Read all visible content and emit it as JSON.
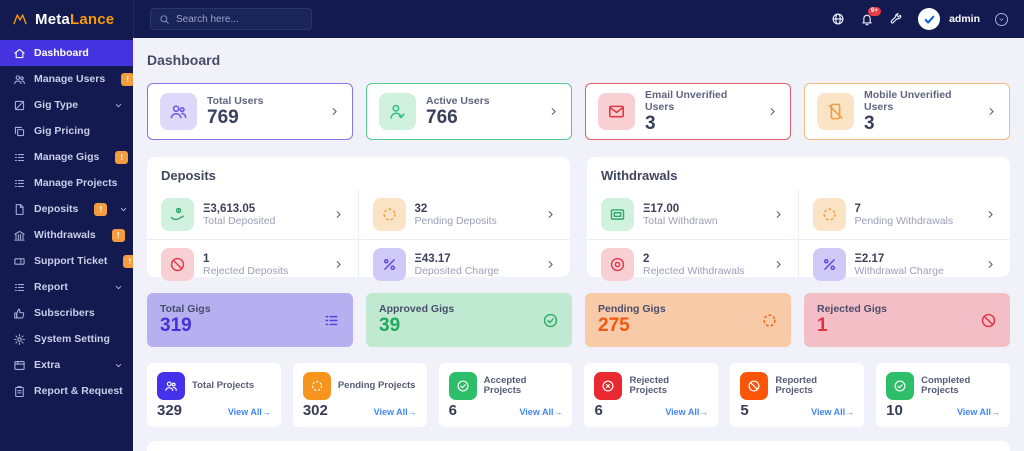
{
  "brand": {
    "name_primary": "Meta",
    "name_secondary": "Lance"
  },
  "header": {
    "search_placeholder": "Search here...",
    "notification_count": "9+",
    "username": "admin"
  },
  "page": {
    "title": "Dashboard"
  },
  "sidebar": {
    "items": [
      {
        "label": "Dashboard",
        "icon": "home",
        "active": true
      },
      {
        "label": "Manage Users",
        "icon": "users",
        "badge": "!",
        "caret": true
      },
      {
        "label": "Gig Type",
        "icon": "grid",
        "caret": true
      },
      {
        "label": "Gig Pricing",
        "icon": "copy"
      },
      {
        "label": "Manage Gigs",
        "icon": "list",
        "badge": "!",
        "caret": true
      },
      {
        "label": "Manage Projects",
        "icon": "list",
        "badge": "!",
        "caret": true
      },
      {
        "label": "Deposits",
        "icon": "file",
        "badge": "!",
        "caret": true
      },
      {
        "label": "Withdrawals",
        "icon": "bank",
        "badge": "!",
        "caret": true
      },
      {
        "label": "Support Ticket",
        "icon": "ticket",
        "badge": "!",
        "caret": true
      },
      {
        "label": "Report",
        "icon": "list",
        "caret": true
      },
      {
        "label": "Subscribers",
        "icon": "thumb"
      },
      {
        "label": "System Setting",
        "icon": "gear"
      },
      {
        "label": "Extra",
        "icon": "window",
        "caret": true
      },
      {
        "label": "Report & Request",
        "icon": "clipboard"
      }
    ]
  },
  "stat_cards": [
    {
      "label": "Total Users",
      "value": "769",
      "icon": "users",
      "theme": "purple"
    },
    {
      "label": "Active Users",
      "value": "766",
      "icon": "user-check",
      "theme": "green"
    },
    {
      "label": "Email Unverified Users",
      "value": "3",
      "icon": "envelope",
      "theme": "red"
    },
    {
      "label": "Mobile Unverified Users",
      "value": "3",
      "icon": "phone-slash",
      "theme": "orange"
    }
  ],
  "deposits": {
    "title": "Deposits",
    "items": [
      {
        "value": "Ξ3,613.05",
        "label": "Total Deposited",
        "icon": "hand-coin",
        "theme": "green"
      },
      {
        "value": "32",
        "label": "Pending Deposits",
        "icon": "spinner",
        "theme": "orange"
      },
      {
        "value": "1",
        "label": "Rejected Deposits",
        "icon": "ban",
        "theme": "red"
      },
      {
        "value": "Ξ43.17",
        "label": "Deposited Charge",
        "icon": "percent",
        "theme": "purple"
      }
    ]
  },
  "withdrawals": {
    "title": "Withdrawals",
    "items": [
      {
        "value": "Ξ17.00",
        "label": "Total Withdrawn",
        "icon": "card",
        "theme": "green"
      },
      {
        "value": "7",
        "label": "Pending Withdrawals",
        "icon": "spinner",
        "theme": "orange"
      },
      {
        "value": "2",
        "label": "Rejected Withdrawals",
        "icon": "circle-dot",
        "theme": "red"
      },
      {
        "value": "Ξ2.17",
        "label": "Withdrawal Charge",
        "icon": "percent",
        "theme": "purple"
      }
    ]
  },
  "gig_cards": [
    {
      "label": "Total Gigs",
      "value": "319",
      "icon": "list",
      "theme": "purple"
    },
    {
      "label": "Approved Gigs",
      "value": "39",
      "icon": "check-circle",
      "theme": "green"
    },
    {
      "label": "Pending Gigs",
      "value": "275",
      "icon": "spinner",
      "theme": "orange"
    },
    {
      "label": "Rejected Gigs",
      "value": "1",
      "icon": "ban",
      "theme": "red"
    }
  ],
  "project_cards": [
    {
      "label": "Total Projects",
      "value": "329",
      "icon": "users"
    },
    {
      "label": "Pending Projects",
      "value": "302",
      "icon": "spinner"
    },
    {
      "label": "Accepted Projects",
      "value": "6",
      "icon": "check-circle"
    },
    {
      "label": "Rejected Projects",
      "value": "6",
      "icon": "x-circle"
    },
    {
      "label": "Reported Projects",
      "value": "5",
      "icon": "ban"
    },
    {
      "label": "Completed Projects",
      "value": "10",
      "icon": "check-circle"
    }
  ],
  "labels": {
    "view_all": "View All→"
  },
  "colors": {
    "sidebar_bg": "#121a4f",
    "active_item": "#4533e0",
    "brand_orange": "#f79b04",
    "badge_orange": "#f59d3e",
    "purple": "#6a5ae8",
    "green": "#2fbf7f",
    "red": "#e23a44",
    "orange": "#f09d3f",
    "link_blue": "#4186f5",
    "notification_red": "#e93d46",
    "currency_symbol": "Ξ"
  }
}
